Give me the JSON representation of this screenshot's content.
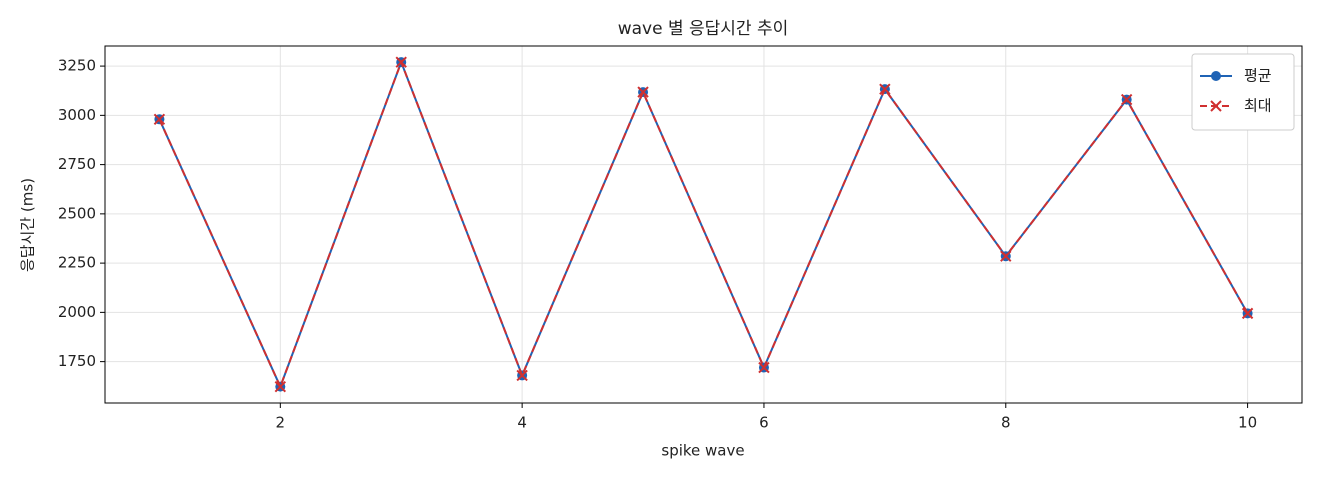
{
  "chart_data": {
    "type": "line",
    "title": "wave 별 응답시간 추이",
    "x_label": "spike wave",
    "y_label": "응답시간 (ms)",
    "x": [
      1,
      2,
      3,
      4,
      5,
      6,
      7,
      8,
      9,
      10
    ],
    "series": [
      {
        "name": "평균",
        "color": "#1f63b5",
        "marker": "o",
        "linestyle": "solid",
        "values": [
          2980,
          1623,
          3270,
          1680,
          3118,
          1720,
          3133,
          2285,
          3080,
          1995
        ]
      },
      {
        "name": "최대",
        "color": "#d03030",
        "marker": "x",
        "linestyle": "dashed",
        "values": [
          2980,
          1623,
          3270,
          1680,
          3118,
          1720,
          3133,
          2285,
          3080,
          1995
        ]
      }
    ],
    "xlim": [
      0.55,
      10.45
    ],
    "ylim": [
      1540,
      3352
    ],
    "xticks": [
      2,
      4,
      6,
      8,
      10
    ],
    "yticks": [
      1750,
      2000,
      2250,
      2500,
      2750,
      3000,
      3250
    ],
    "grid": true,
    "legend": "upper right"
  }
}
